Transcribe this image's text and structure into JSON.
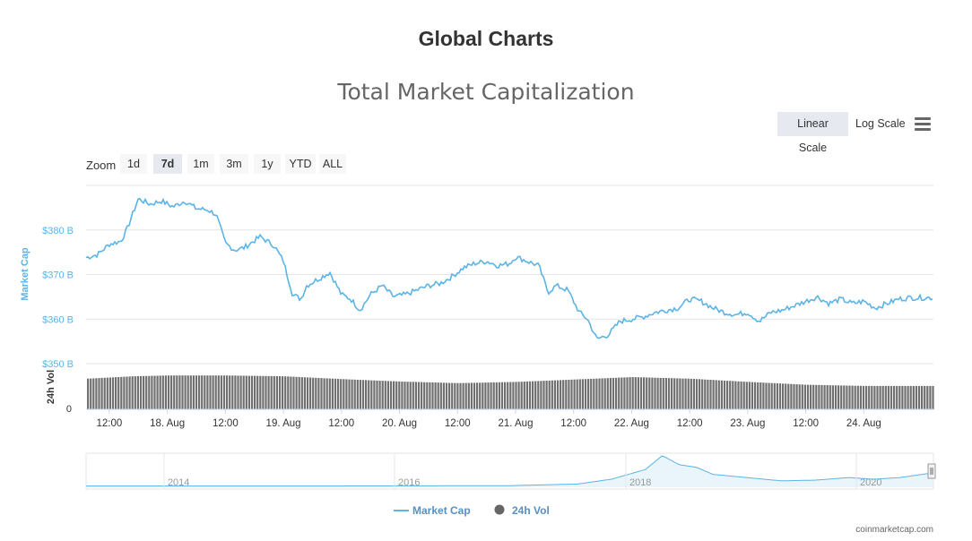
{
  "page": {
    "title": "Global Charts",
    "credit": "coinmarketcap.com"
  },
  "controls": {
    "scales": [
      "Linear Scale",
      "Log Scale"
    ],
    "active_scale": "Linear Scale",
    "menu_icon": "hamburger-menu-icon",
    "zoom_label": "Zoom",
    "zoom_options": [
      "1d",
      "7d",
      "1m",
      "3m",
      "1y",
      "YTD",
      "ALL"
    ],
    "active_zoom": "7d"
  },
  "colors": {
    "market_cap": "#5bb4e5",
    "volume": "#6f6f6f",
    "axis_text": "#5bb4e5"
  },
  "chart_data": {
    "type": "line",
    "title": "Total Market Capitalization",
    "grid": true,
    "legend_placement": "bottom-center",
    "x_tick_labels": [
      "12:00",
      "18. Aug",
      "12:00",
      "19. Aug",
      "12:00",
      "20. Aug",
      "12:00",
      "21. Aug",
      "12:00",
      "22. Aug",
      "12:00",
      "23. Aug",
      "12:00",
      "24. Aug"
    ],
    "x_range_days": [
      17.3,
      24.6
    ],
    "market_cap": {
      "ylabel": "Market Cap",
      "unit": "B",
      "ylim": [
        350,
        390
      ],
      "y_tick_labels": [
        "$350 B",
        "$360 B",
        "$370 B",
        "$380 B"
      ],
      "y_ticks": [
        350,
        360,
        370,
        380
      ],
      "points": [
        [
          17.3,
          373.8
        ],
        [
          17.4,
          374.5
        ],
        [
          17.5,
          376.8
        ],
        [
          17.6,
          377.5
        ],
        [
          17.65,
          380.0
        ],
        [
          17.75,
          387.0
        ],
        [
          17.85,
          385.8
        ],
        [
          17.95,
          386.5
        ],
        [
          18.05,
          385.2
        ],
        [
          18.15,
          386.5
        ],
        [
          18.25,
          384.8
        ],
        [
          18.35,
          384.5
        ],
        [
          18.42,
          383.5
        ],
        [
          18.5,
          377.0
        ],
        [
          18.58,
          375.5
        ],
        [
          18.66,
          376.0
        ],
        [
          18.8,
          378.5
        ],
        [
          18.92,
          376.5
        ],
        [
          19.0,
          373.0
        ],
        [
          19.08,
          365.5
        ],
        [
          19.15,
          364.5
        ],
        [
          19.2,
          367.5
        ],
        [
          19.3,
          369.0
        ],
        [
          19.4,
          370.5
        ],
        [
          19.5,
          365.5
        ],
        [
          19.58,
          364.5
        ],
        [
          19.66,
          362.0
        ],
        [
          19.75,
          365.5
        ],
        [
          19.85,
          367.5
        ],
        [
          19.95,
          365.0
        ],
        [
          20.05,
          365.5
        ],
        [
          20.15,
          366.5
        ],
        [
          20.25,
          367.5
        ],
        [
          20.35,
          368.0
        ],
        [
          20.45,
          369.5
        ],
        [
          20.55,
          371.5
        ],
        [
          20.65,
          372.5
        ],
        [
          20.75,
          373.0
        ],
        [
          20.85,
          372.0
        ],
        [
          20.95,
          372.5
        ],
        [
          21.0,
          374.0
        ],
        [
          21.1,
          373.0
        ],
        [
          21.2,
          372.0
        ],
        [
          21.28,
          366.0
        ],
        [
          21.35,
          367.5
        ],
        [
          21.45,
          366.5
        ],
        [
          21.55,
          361.5
        ],
        [
          21.62,
          360.0
        ],
        [
          21.7,
          355.5
        ],
        [
          21.8,
          356.5
        ],
        [
          21.9,
          359.5
        ],
        [
          22.0,
          360.0
        ],
        [
          22.1,
          360.5
        ],
        [
          22.2,
          361.5
        ],
        [
          22.3,
          362.0
        ],
        [
          22.4,
          362.5
        ],
        [
          22.5,
          364.5
        ],
        [
          22.6,
          364.0
        ],
        [
          22.7,
          362.5
        ],
        [
          22.8,
          361.5
        ],
        [
          22.9,
          361.0
        ],
        [
          23.0,
          361.5
        ],
        [
          23.1,
          359.5
        ],
        [
          23.2,
          361.5
        ],
        [
          23.3,
          362.0
        ],
        [
          23.4,
          363.0
        ],
        [
          23.5,
          364.0
        ],
        [
          23.6,
          365.0
        ],
        [
          23.7,
          363.5
        ],
        [
          23.8,
          364.5
        ],
        [
          23.9,
          363.5
        ],
        [
          24.0,
          364.0
        ],
        [
          24.1,
          362.5
        ],
        [
          24.2,
          363.5
        ],
        [
          24.3,
          364.5
        ],
        [
          24.4,
          364.8
        ]
      ]
    },
    "volume": {
      "ylabel": "24h Vol",
      "y_tick_labels": [
        "0"
      ],
      "relative_levels": [
        [
          17.3,
          0.76
        ],
        [
          17.7,
          0.82
        ],
        [
          18.0,
          0.84
        ],
        [
          18.5,
          0.84
        ],
        [
          19.0,
          0.82
        ],
        [
          19.5,
          0.75
        ],
        [
          20.0,
          0.69
        ],
        [
          20.5,
          0.65
        ],
        [
          21.0,
          0.68
        ],
        [
          21.5,
          0.74
        ],
        [
          22.0,
          0.8
        ],
        [
          22.5,
          0.76
        ],
        [
          23.0,
          0.68
        ],
        [
          23.5,
          0.61
        ],
        [
          24.0,
          0.58
        ],
        [
          24.6,
          0.58
        ]
      ]
    },
    "navigator": {
      "year_labels": [
        "2014",
        "2016",
        "2018",
        "2020"
      ],
      "relative_levels": [
        [
          0.0,
          0.04
        ],
        [
          0.3,
          0.04
        ],
        [
          0.5,
          0.05
        ],
        [
          0.58,
          0.1
        ],
        [
          0.62,
          0.25
        ],
        [
          0.66,
          0.55
        ],
        [
          0.68,
          0.98
        ],
        [
          0.7,
          0.7
        ],
        [
          0.72,
          0.62
        ],
        [
          0.74,
          0.4
        ],
        [
          0.78,
          0.3
        ],
        [
          0.82,
          0.2
        ],
        [
          0.86,
          0.22
        ],
        [
          0.9,
          0.3
        ],
        [
          0.93,
          0.25
        ],
        [
          0.96,
          0.3
        ],
        [
          1.0,
          0.45
        ]
      ]
    },
    "legend": [
      "Market Cap",
      "24h Vol"
    ]
  }
}
